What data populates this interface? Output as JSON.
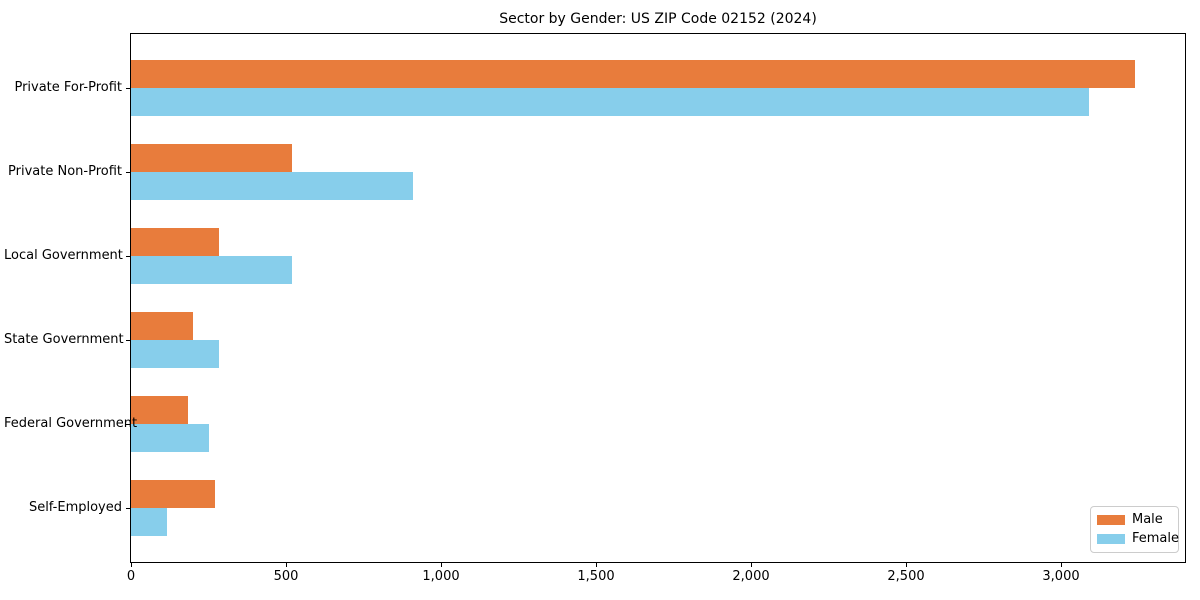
{
  "chart_data": {
    "type": "bar",
    "orientation": "horizontal",
    "title": "Sector by Gender: US ZIP Code 02152 (2024)",
    "categories": [
      "Private For-Profit",
      "Private Non-Profit",
      "Local Government",
      "State Government",
      "Federal Government",
      "Self-Employed"
    ],
    "series": [
      {
        "name": "Male",
        "color": "#e87c3c",
        "values": [
          3240,
          520,
          285,
          200,
          185,
          270
        ]
      },
      {
        "name": "Female",
        "color": "#87ceeb",
        "values": [
          3090,
          910,
          520,
          285,
          250,
          115
        ]
      }
    ],
    "xlabel": "",
    "ylabel": "",
    "xlim": [
      0,
      3400
    ],
    "xtick_values": [
      0,
      500,
      1000,
      1500,
      2000,
      2500,
      3000
    ],
    "xtick_labels": [
      "0",
      "500",
      "1,000",
      "1,500",
      "2,000",
      "2,500",
      "3,000"
    ],
    "grid": false,
    "legend_position": "lower right",
    "colors": {
      "male": "#e87c3c",
      "female": "#87ceeb",
      "spine": "#000000",
      "legend_border": "#cccccc",
      "background": "#ffffff"
    }
  }
}
